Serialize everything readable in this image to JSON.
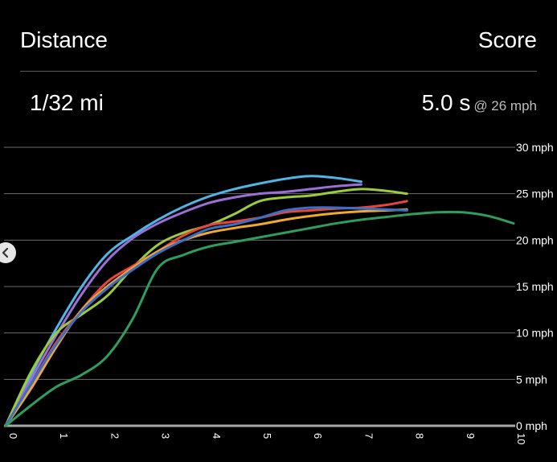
{
  "header": {
    "left_label": "Distance",
    "right_label": "Score"
  },
  "summary": {
    "distance": "1/32 mi",
    "score": "5.0 s",
    "score_speed": "@ 26 mph"
  },
  "icons": {
    "back": "chevron-left-icon"
  },
  "colors": {
    "background": "#000000",
    "grid": "#6e6e6e",
    "text": "#ffffff"
  },
  "chart_data": {
    "type": "line",
    "xlabel": "",
    "ylabel": "",
    "xlim": [
      0,
      10
    ],
    "ylim": [
      0,
      30
    ],
    "grid": true,
    "x_ticks": [
      "0",
      "1",
      "2",
      "3",
      "4",
      "5",
      "6",
      "7",
      "8",
      "9",
      "10"
    ],
    "y_ticks": [
      "0 mph",
      "5 mph",
      "10 mph",
      "15 mph",
      "20 mph",
      "25 mph",
      "30 mph"
    ],
    "series": [
      {
        "color": "#4fb6e8",
        "x": [
          0,
          0.5,
          1,
          1.5,
          2,
          2.5,
          3,
          3.5,
          4,
          4.5,
          5,
          5.5,
          6,
          6.5,
          7
        ],
        "y": [
          0,
          5.5,
          10.5,
          15,
          18.5,
          20.5,
          22.2,
          23.6,
          24.7,
          25.5,
          26.1,
          26.6,
          26.9,
          26.7,
          26.3
        ]
      },
      {
        "color": "#9b6fd6",
        "x": [
          0,
          0.5,
          1,
          1.5,
          2,
          2.5,
          3,
          3.5,
          4,
          4.5,
          5,
          5.5,
          6,
          6.5,
          7
        ],
        "y": [
          0,
          5,
          9.8,
          14.2,
          17.8,
          20.2,
          21.8,
          23,
          24,
          24.6,
          25,
          25.2,
          25.5,
          25.8,
          26
        ]
      },
      {
        "color": "#9ccc3c",
        "x": [
          0,
          0.5,
          1,
          1.5,
          2,
          2.5,
          3,
          3.5,
          4,
          4.5,
          5,
          5.5,
          6,
          6.5,
          7,
          7.5,
          7.9
        ],
        "y": [
          0,
          5.8,
          10,
          12,
          14,
          17,
          19.5,
          20.8,
          21.6,
          22.8,
          24.2,
          24.6,
          24.8,
          25.2,
          25.5,
          25.3,
          25
        ]
      },
      {
        "color": "#e8463c",
        "x": [
          0,
          0.5,
          1,
          1.5,
          2,
          2.5,
          3,
          3.5,
          4,
          4.5,
          5,
          5.5,
          6,
          6.5,
          7,
          7.5,
          7.9
        ],
        "y": [
          0,
          4.5,
          9,
          12.5,
          15.5,
          17.2,
          18.8,
          20.5,
          21.6,
          22,
          22.4,
          23,
          23.2,
          23.4,
          23.5,
          23.8,
          24.2
        ]
      },
      {
        "color": "#f0a830",
        "x": [
          0,
          0.5,
          1,
          1.5,
          2,
          2.5,
          3,
          3.5,
          4,
          4.5,
          5,
          5.5,
          6,
          6.5,
          7,
          7.5,
          7.9
        ],
        "y": [
          0,
          4,
          8.5,
          12.5,
          15,
          17,
          18.8,
          20,
          20.8,
          21.3,
          21.7,
          22.2,
          22.6,
          22.9,
          23.1,
          23.2,
          23.3
        ]
      },
      {
        "color": "#3a6ec8",
        "x": [
          0,
          0.5,
          1,
          1.5,
          2,
          2.5,
          3,
          3.5,
          4,
          4.5,
          5,
          5.5,
          6,
          6.5,
          7,
          7.5,
          7.9
        ],
        "y": [
          0,
          4.5,
          8.8,
          12.3,
          14.8,
          16.8,
          18.6,
          20,
          21.2,
          21.7,
          22.4,
          23.2,
          23.5,
          23.5,
          23.4,
          23.3,
          23.2
        ]
      },
      {
        "color": "#2e9e5e",
        "x": [
          0,
          0.5,
          1,
          1.5,
          2,
          2.5,
          3,
          3.5,
          4,
          4.5,
          5,
          5.5,
          6,
          6.5,
          7,
          7.5,
          8,
          8.5,
          9,
          9.5,
          10
        ],
        "y": [
          0,
          2.2,
          4.2,
          5.5,
          7.5,
          11.5,
          17,
          18.4,
          19.3,
          19.8,
          20.3,
          20.8,
          21.3,
          21.8,
          22.2,
          22.5,
          22.8,
          23,
          23,
          22.6,
          21.8
        ]
      }
    ]
  }
}
